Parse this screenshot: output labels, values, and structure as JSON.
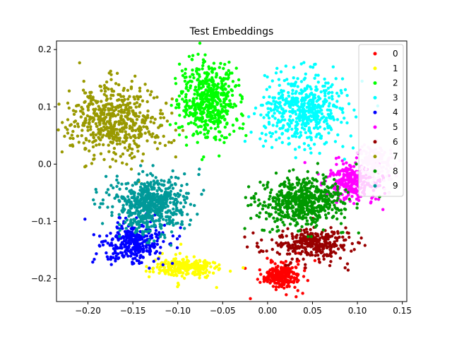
{
  "chart_data": {
    "type": "scatter",
    "title": "Test Embeddings",
    "xlabel": "",
    "ylabel": "",
    "xlim": [
      -0.235,
      0.155
    ],
    "ylim": [
      -0.24,
      0.215
    ],
    "x_ticks": [
      -0.2,
      -0.15,
      -0.1,
      -0.05,
      0.0,
      0.05,
      0.1,
      0.15
    ],
    "x_tick_labels": [
      "−0.20",
      "−0.15",
      "−0.10",
      "−0.05",
      "0.00",
      "0.05",
      "0.10",
      "0.15"
    ],
    "y_ticks": [
      -0.2,
      -0.1,
      0.0,
      0.1,
      0.2
    ],
    "y_tick_labels": [
      "−0.2",
      "−0.1",
      "0.0",
      "0.1",
      "0.2"
    ],
    "grid": false,
    "legend_position": "top-right",
    "series": [
      {
        "name": "0",
        "color": "#ff0000",
        "center": [
          0.017,
          -0.196
        ],
        "spread": [
          0.01,
          0.01
        ],
        "count": 260
      },
      {
        "name": "1",
        "color": "#ffff00",
        "center": [
          -0.09,
          -0.18
        ],
        "spread": [
          0.018,
          0.008
        ],
        "count": 240
      },
      {
        "name": "2",
        "color": "#00ff00",
        "center": [
          -0.065,
          0.11
        ],
        "spread": [
          0.016,
          0.035
        ],
        "count": 520
      },
      {
        "name": "3",
        "color": "#00ffff",
        "center": [
          0.04,
          0.095
        ],
        "spread": [
          0.022,
          0.03
        ],
        "count": 520
      },
      {
        "name": "4",
        "color": "#0000ff",
        "center": [
          -0.15,
          -0.135
        ],
        "spread": [
          0.016,
          0.018
        ],
        "count": 320
      },
      {
        "name": "5",
        "color": "#ff00ff",
        "center": [
          0.095,
          -0.03
        ],
        "spread": [
          0.014,
          0.016
        ],
        "count": 300
      },
      {
        "name": "6",
        "color": "#990000",
        "center": [
          0.05,
          -0.14
        ],
        "spread": [
          0.022,
          0.012
        ],
        "count": 320
      },
      {
        "name": "7",
        "color": "#999900",
        "center": [
          -0.17,
          0.075
        ],
        "spread": [
          0.026,
          0.03
        ],
        "count": 560
      },
      {
        "name": "8",
        "color": "#009900",
        "center": [
          0.04,
          -0.065
        ],
        "spread": [
          0.022,
          0.02
        ],
        "count": 560
      },
      {
        "name": "9",
        "color": "#009999",
        "center": [
          -0.13,
          -0.07
        ],
        "spread": [
          0.02,
          0.024
        ],
        "count": 600
      }
    ],
    "legend_extra": {
      "name": "7",
      "color": "#ffccff",
      "center": [
        0.12,
        0.0
      ],
      "spread": [
        0.01,
        0.015
      ],
      "count": 160
    }
  }
}
